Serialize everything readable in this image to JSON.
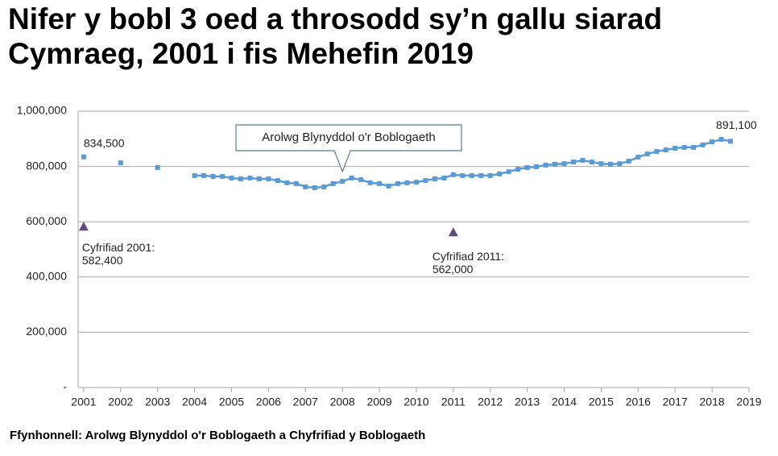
{
  "chart_data": {
    "type": "line",
    "title": [
      "Nifer y bobl 3 oed a throsodd sy’n gallu siarad",
      "Cymraeg, 2001 i fis Mehefin 2019"
    ],
    "source": "Ffynhonnell: Arolwg Blynyddol o'r Boblogaeth a Chyfrifiad y Boblogaeth",
    "xlim": [
      2000.85,
      2019
    ],
    "xticks": [
      2001,
      2002,
      2003,
      2004,
      2005,
      2006,
      2007,
      2008,
      2009,
      2010,
      2011,
      2012,
      2013,
      2014,
      2015,
      2016,
      2017,
      2018,
      2019
    ],
    "ylim": [
      0,
      1000000
    ],
    "yticks": [
      {
        "value": 0,
        "label": "-"
      },
      {
        "value": 200000,
        "label": "200,000"
      },
      {
        "value": 400000,
        "label": "400,000"
      },
      {
        "value": 600000,
        "label": "600,000"
      },
      {
        "value": 800000,
        "label": "800,000"
      },
      {
        "value": 1000000,
        "label": "1,000,000"
      }
    ],
    "grid": true,
    "annotation": {
      "text": "Arolwg Blynyddol o'r Boblogaeth",
      "x": 2008
    },
    "series": [
      {
        "color": "#5b9bd5",
        "line": false,
        "marker": "square",
        "x": [
          2001,
          2002,
          2003
        ],
        "values": [
          834500,
          813000,
          796000
        ],
        "value_labels": [
          "834,500",
          null,
          null
        ]
      },
      {
        "color": "#5b9bd5",
        "line": true,
        "marker": "square",
        "x": [
          2004,
          2004.25,
          2004.5,
          2004.75,
          2005,
          2005.25,
          2005.5,
          2005.75,
          2006,
          2006.25,
          2006.5,
          2006.75,
          2007,
          2007.25,
          2007.5,
          2007.75,
          2008,
          2008.25,
          2008.5,
          2008.75,
          2009,
          2009.25,
          2009.5,
          2009.75,
          2010,
          2010.25,
          2010.5,
          2010.75,
          2011,
          2011.25,
          2011.5,
          2011.75,
          2012,
          2012.25,
          2012.5,
          2012.75,
          2013,
          2013.25,
          2013.5,
          2013.75,
          2014,
          2014.25,
          2014.5,
          2014.75,
          2015,
          2015.25,
          2015.5,
          2015.75,
          2016,
          2016.25,
          2016.5,
          2016.75,
          2017,
          2017.25,
          2017.5,
          2017.75,
          2018,
          2018.25,
          2018.5
        ],
        "values": [
          767000,
          767000,
          764000,
          764000,
          758000,
          755000,
          758000,
          755000,
          755000,
          749000,
          741000,
          738000,
          726000,
          723000,
          726000,
          738000,
          746000,
          758000,
          752000,
          741000,
          738000,
          729000,
          738000,
          741000,
          743000,
          749000,
          755000,
          758000,
          770000,
          767000,
          767000,
          767000,
          767000,
          773000,
          781000,
          790000,
          796000,
          799000,
          805000,
          808000,
          810000,
          816000,
          822000,
          816000,
          810000,
          808000,
          810000,
          819000,
          834000,
          845000,
          854000,
          860000,
          866000,
          869000,
          869000,
          878000,
          889000,
          898000,
          891100
        ],
        "value_labels": [
          null,
          null,
          null,
          null,
          null,
          null,
          null,
          null,
          null,
          null,
          null,
          null,
          null,
          null,
          null,
          null,
          null,
          null,
          null,
          null,
          null,
          null,
          null,
          null,
          null,
          null,
          null,
          null,
          null,
          null,
          null,
          null,
          null,
          null,
          null,
          null,
          null,
          null,
          null,
          null,
          null,
          null,
          null,
          null,
          null,
          null,
          null,
          null,
          null,
          null,
          null,
          null,
          null,
          null,
          null,
          null,
          null,
          null,
          "891,100"
        ]
      },
      {
        "color": "#604a7b",
        "line": false,
        "marker": "triangle",
        "x": [
          2001,
          2011
        ],
        "values": [
          582400,
          562000
        ],
        "labels": [
          "Cyfrifiad 2001:",
          "Cyfrifiad 2011:"
        ],
        "value_labels": [
          "582,400",
          "562,000"
        ]
      }
    ]
  }
}
